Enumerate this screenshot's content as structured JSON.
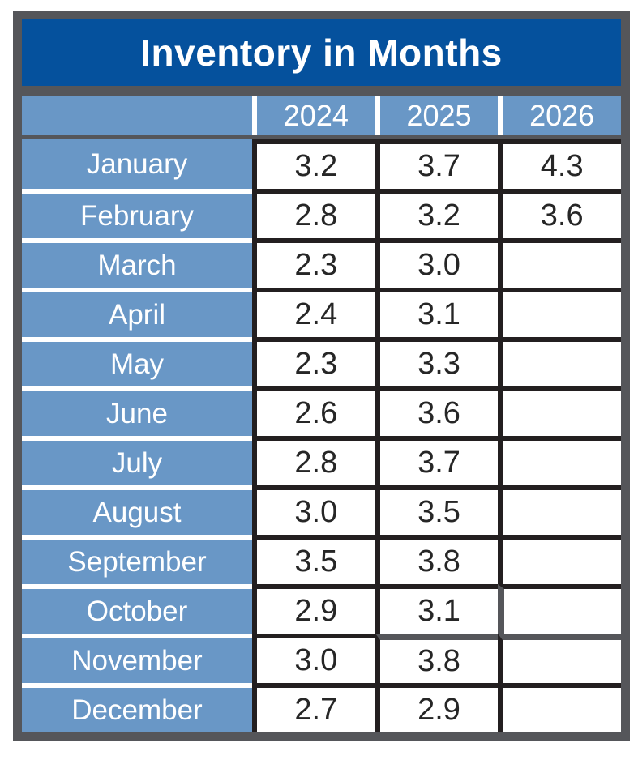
{
  "title": "Inventory in Months",
  "table": {
    "year_headers": [
      "2024",
      "2025",
      "2026"
    ],
    "rows": [
      {
        "month": "January",
        "values": [
          "3.2",
          "3.7",
          "4.3"
        ]
      },
      {
        "month": "February",
        "values": [
          "2.8",
          "3.2",
          "3.6"
        ]
      },
      {
        "month": "March",
        "values": [
          "2.3",
          "3.0",
          ""
        ]
      },
      {
        "month": "April",
        "values": [
          "2.4",
          "3.1",
          ""
        ]
      },
      {
        "month": "May",
        "values": [
          "2.3",
          "3.3",
          ""
        ]
      },
      {
        "month": "June",
        "values": [
          "2.6",
          "3.6",
          ""
        ]
      },
      {
        "month": "July",
        "values": [
          "2.8",
          "3.7",
          ""
        ]
      },
      {
        "month": "August",
        "values": [
          "3.0",
          "3.5",
          ""
        ]
      },
      {
        "month": "September",
        "values": [
          "3.5",
          "3.8",
          ""
        ]
      },
      {
        "month": "October",
        "values": [
          "2.9",
          "3.1",
          ""
        ]
      },
      {
        "month": "November",
        "values": [
          "3.0",
          "3.8",
          ""
        ]
      },
      {
        "month": "December",
        "values": [
          "2.7",
          "2.9",
          ""
        ]
      }
    ]
  },
  "colors": {
    "title_bg": "#05519d",
    "label_bg": "#6997c6",
    "frame_gray": "#55565a",
    "cell_border": "#231f20",
    "value_text": "#262626",
    "header_text": "#ffffff"
  },
  "chart_data": {
    "type": "table",
    "title": "Inventory in Months",
    "categories": [
      "January",
      "February",
      "March",
      "April",
      "May",
      "June",
      "July",
      "August",
      "September",
      "October",
      "November",
      "December"
    ],
    "series": [
      {
        "name": "2024",
        "values": [
          3.2,
          2.8,
          2.3,
          2.4,
          2.3,
          2.6,
          2.8,
          3.0,
          3.5,
          2.9,
          3.0,
          2.7
        ]
      },
      {
        "name": "2025",
        "values": [
          3.7,
          3.2,
          3.0,
          3.1,
          3.3,
          3.6,
          3.7,
          3.5,
          3.8,
          3.1,
          3.8,
          2.9
        ]
      },
      {
        "name": "2026",
        "values": [
          4.3,
          3.6,
          null,
          null,
          null,
          null,
          null,
          null,
          null,
          null,
          null,
          null
        ]
      }
    ],
    "layout_hints": {
      "header_row": "years across top",
      "label_column": "months down left side",
      "grid": "on"
    }
  }
}
